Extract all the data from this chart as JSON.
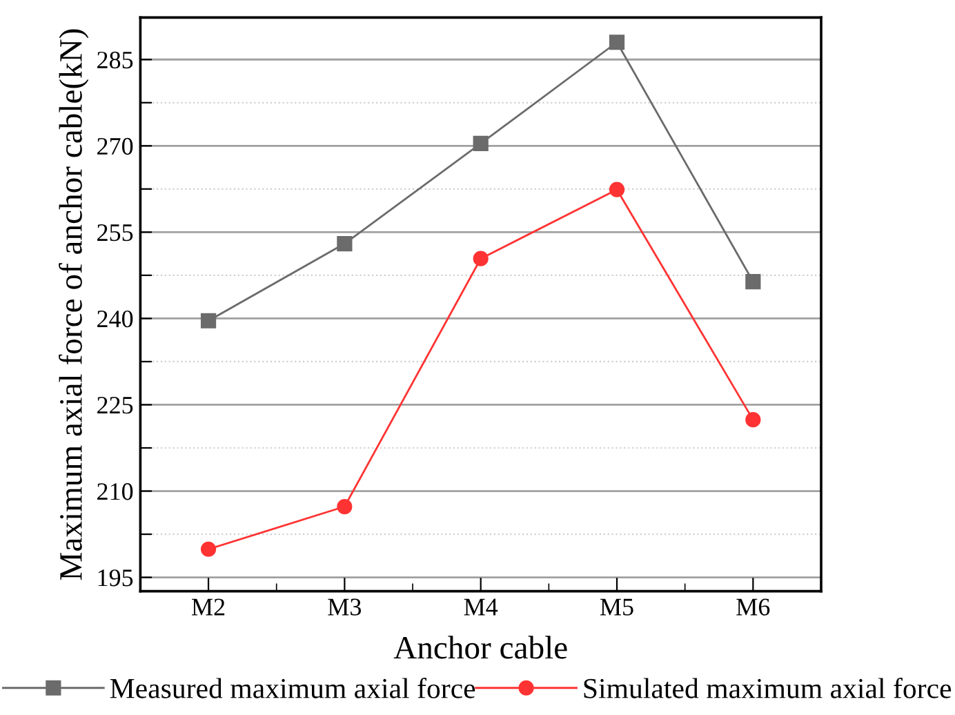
{
  "chart_data": {
    "type": "line",
    "xlabel": "Anchor cable",
    "ylabel": "Maximum axial force of anchor cable(kN)",
    "categories": [
      "M2",
      "M3",
      "M4",
      "M5",
      "M6"
    ],
    "series": [
      {
        "name": "Measured maximum axial force",
        "color": "#6b6b6b",
        "marker": "square",
        "values": [
          239.6,
          253.0,
          270.4,
          288.0,
          246.4
        ]
      },
      {
        "name": "Simulated maximum axial force",
        "color": "#ff3333",
        "marker": "circle",
        "values": [
          199.9,
          207.3,
          250.4,
          262.4,
          222.4
        ]
      }
    ],
    "ylim": [
      192.6,
      292.3
    ],
    "yticks": [
      195,
      {
        "value": 202.5,
        "label": null
      },
      210,
      {
        "value": 217.5,
        "label": null
      },
      225,
      {
        "value": 232.5,
        "label": null
      },
      240,
      {
        "value": 247.5,
        "label": null
      },
      255,
      {
        "value": 262.5,
        "label": null
      },
      270,
      {
        "value": 277.5,
        "label": null
      },
      285
    ],
    "grid": "y",
    "legend": "bottom",
    "line_style": "solid"
  }
}
